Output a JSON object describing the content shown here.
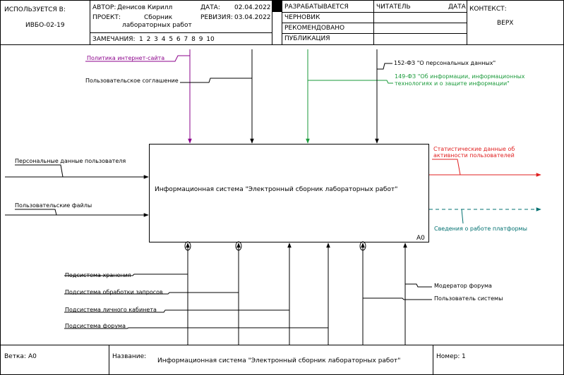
{
  "header": {
    "used_at_label": "ИСПОЛЬЗУЕТСЯ В:",
    "used_at_value": "ИВБО-02-19",
    "author_label": "АВТОР:",
    "author_value": "Денисов Кирилл",
    "date_label": "ДАТА:",
    "date_value": "02.04.2022",
    "project_label": "ПРОЕКТ:",
    "project_value_line1": "Сборник",
    "project_value_line2": "лабораторных работ",
    "revision_label": "РЕВИЗИЯ:",
    "revision_value": "03.04.2022",
    "notes_label": "ЗАМЕЧАНИЯ:",
    "notes_value": "1 2 3 4 5 6 7 8 9 10",
    "status": {
      "developing": "РАЗРАБАТЫВАЕТСЯ",
      "draft": "ЧЕРНОВИК",
      "recommended": "РЕКОМЕНДОВАНО",
      "publication": "ПУБЛИКАЦИЯ"
    },
    "reader_label": "ЧИТАТЕЛЬ",
    "reader_date_label": "ДАТА",
    "context_label": "КОНТЕКСТ:",
    "context_value": "ВЕРХ"
  },
  "diagram": {
    "box_title": "Информационная система \"Электронный сборник лабораторных работ\"",
    "box_id": "A0",
    "inputs": [
      {
        "label": "Персональные данные пользователя"
      },
      {
        "label": "Пользовательские файлы"
      }
    ],
    "controls": [
      {
        "label": "Политика интернет-сайта",
        "color": "#8b008b"
      },
      {
        "label": "Пользовательское соглашение",
        "color": "#000000"
      },
      {
        "label": "149-ФЗ \"Об информации, информационных",
        "color": "#1a8a3a"
      },
      {
        "label": "технологиях и о защите информации\"",
        "color": "#1a8a3a"
      },
      {
        "label": "152-ФЗ \"О персональных данных\"",
        "color": "#000000"
      }
    ],
    "outputs": [
      {
        "label": "Статистические данные об",
        "color": "#e02020"
      },
      {
        "label": "активности пользователей",
        "color": "#e02020"
      },
      {
        "label": "Сведения о работе платформы",
        "color": "#007070"
      }
    ],
    "mechanisms": [
      {
        "label": "Подсистема хранения"
      },
      {
        "label": "Подсистема обработки запросов"
      },
      {
        "label": "Подсистема личного кабинета"
      },
      {
        "label": "Подсистема форума"
      },
      {
        "label": "Модератор форума"
      },
      {
        "label": "Пользователь системы"
      }
    ]
  },
  "footer": {
    "node_label": "Ветка:",
    "node_value": "A0",
    "name_label": "Название:",
    "name_value": "Информационная система \"Электронный сборник лабораторных работ\"",
    "number_label": "Номер:",
    "number_value": "1"
  }
}
